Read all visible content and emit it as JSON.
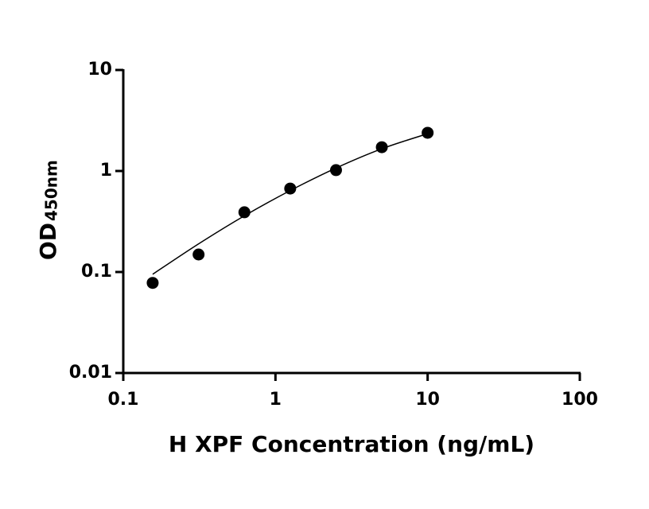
{
  "chart_data": {
    "type": "scatter",
    "x_label": "H XPF Concentration (ng/mL)",
    "y_label": "OD",
    "y_label_sub": "450nm",
    "x": [
      0.156,
      0.3125,
      0.625,
      1.25,
      2.5,
      5,
      10
    ],
    "values": [
      0.078,
      0.149,
      0.39,
      0.67,
      1.02,
      1.72,
      2.39
    ],
    "color": "#000000",
    "fit": {
      "x": [
        0.156,
        0.3125,
        0.625,
        1.25,
        2.5,
        5,
        10
      ],
      "y": [
        0.095,
        0.19,
        0.36,
        0.64,
        1.07,
        1.66,
        2.34
      ]
    },
    "xlim": [
      0.1,
      100
    ],
    "ylim": [
      0.01,
      10
    ],
    "xticks": [
      0.1,
      1,
      10,
      100
    ],
    "yticks": [
      0.01,
      0.1,
      1,
      10
    ],
    "xlog": true,
    "ylog": true
  }
}
